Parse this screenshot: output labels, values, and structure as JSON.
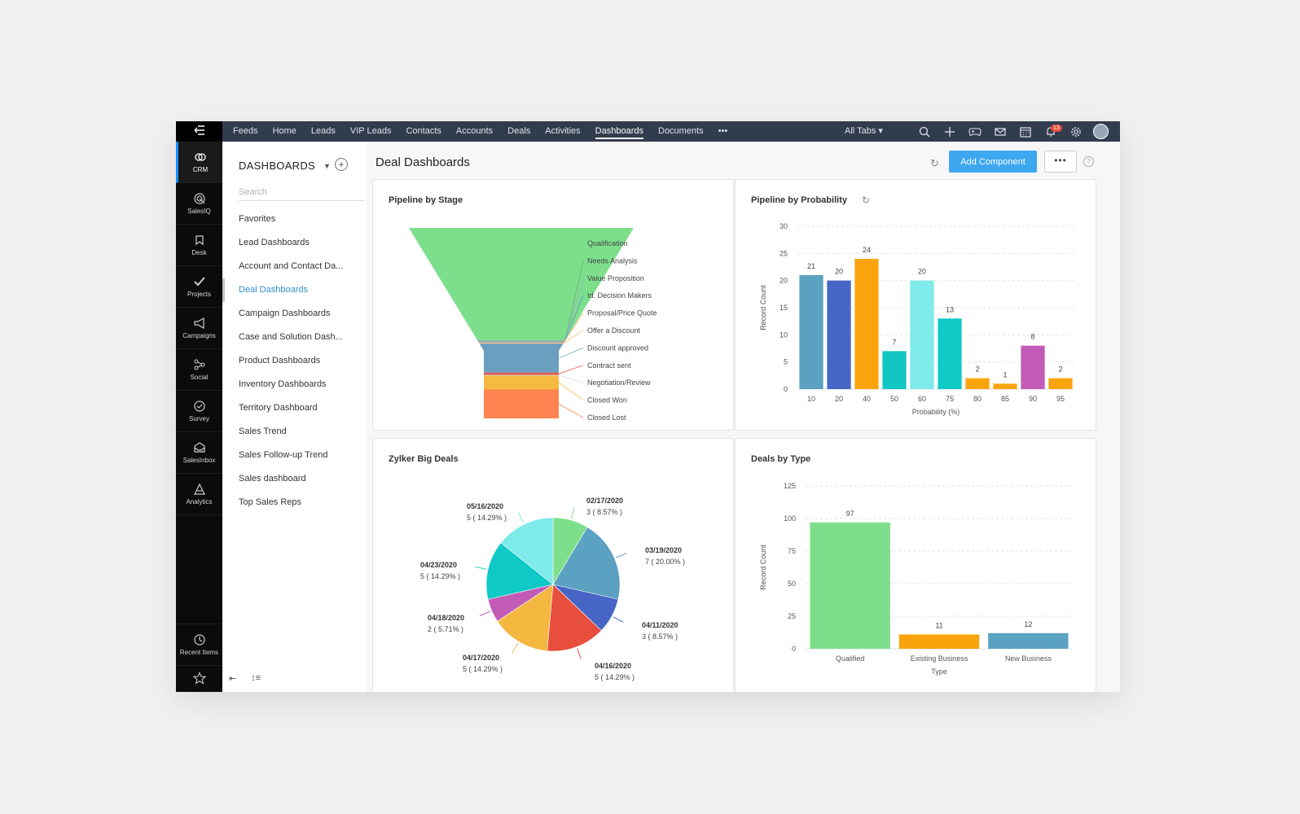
{
  "topnav": {
    "menu_icon": "hamburger-back-icon",
    "tabs": [
      {
        "label": "Feeds"
      },
      {
        "label": "Home"
      },
      {
        "label": "Leads"
      },
      {
        "label": "VIP Leads"
      },
      {
        "label": "Contacts"
      },
      {
        "label": "Accounts"
      },
      {
        "label": "Deals"
      },
      {
        "label": "Activities"
      },
      {
        "label": "Dashboards",
        "active": true
      },
      {
        "label": "Documents"
      },
      {
        "label": "•••"
      }
    ],
    "all_tabs": "All Tabs ▾",
    "notification_count": "13",
    "icons": [
      "search-icon",
      "plus-icon",
      "gamepad-icon",
      "mail-icon",
      "calendar-icon",
      "bell-icon",
      "gear-icon",
      "avatar"
    ]
  },
  "leftrail": {
    "items": [
      {
        "label": "CRM",
        "icon": "crm-icon",
        "active": true
      },
      {
        "label": "SalesIQ",
        "icon": "salesiq-icon"
      },
      {
        "label": "Desk",
        "icon": "desk-icon"
      },
      {
        "label": "Projects",
        "icon": "projects-icon"
      },
      {
        "label": "Campaigns",
        "icon": "campaigns-icon"
      },
      {
        "label": "Social",
        "icon": "social-icon"
      },
      {
        "label": "Survey",
        "icon": "survey-icon"
      },
      {
        "label": "SalesInbox",
        "icon": "salesinbox-icon"
      },
      {
        "label": "Analytics",
        "icon": "analytics-icon"
      }
    ],
    "bottom": [
      {
        "label": "Recent Items",
        "icon": "history-icon"
      },
      {
        "label": "",
        "icon": "star-icon"
      }
    ]
  },
  "dashnav": {
    "title": "DASHBOARDS",
    "search_placeholder": "Search",
    "items": [
      {
        "label": "Favorites"
      },
      {
        "label": "Lead Dashboards"
      },
      {
        "label": "Account and Contact Da..."
      },
      {
        "label": "Deal Dashboards",
        "active": true
      },
      {
        "label": "Campaign Dashboards"
      },
      {
        "label": "Case and Solution Dash..."
      },
      {
        "label": "Product Dashboards"
      },
      {
        "label": "Inventory Dashboards"
      },
      {
        "label": "Territory Dashboard"
      },
      {
        "label": "Sales Trend"
      },
      {
        "label": "Sales Follow-up Trend"
      },
      {
        "label": "Sales dashboard"
      },
      {
        "label": "Top Sales Reps"
      }
    ],
    "footer_icons": [
      "collapse-icon",
      "sort-icon"
    ]
  },
  "main": {
    "title": "Deal Dashboards",
    "add_component": "Add Component",
    "more": "•••",
    "help": "?"
  },
  "colors": {
    "accent": "#3da7f0",
    "topnav": "#313c4e",
    "rail": "#0b0b0b"
  },
  "chart_data": [
    {
      "type": "funnel",
      "title": "Pipeline by Stage",
      "stages": [
        {
          "label": "Qualification",
          "value": 97,
          "color": "#7ddf8c"
        },
        {
          "label": "Needs Analysis",
          "value": 0.6,
          "color": "#65b36f"
        },
        {
          "label": "Value Proposition",
          "value": 0.6,
          "color": "#9fb0c8"
        },
        {
          "label": "Id. Decision Makers",
          "value": 0.6,
          "color": "#6d8dd0"
        },
        {
          "label": "Proposal/Price Quote",
          "value": 0.6,
          "color": "#f2b66e"
        },
        {
          "label": "Offer a Discount",
          "value": 0.6,
          "color": "#f6c878"
        },
        {
          "label": "Discount approved",
          "value": 25,
          "color": "#6a9fbf"
        },
        {
          "label": "Contract sent",
          "value": 2,
          "color": "#e0554e"
        },
        {
          "label": "Negotiation/Review",
          "value": 0.6,
          "color": "#d9d9d9"
        },
        {
          "label": "Closed Won",
          "value": 12,
          "color": "#f5b942"
        },
        {
          "label": "Closed Lost",
          "value": 25,
          "color": "#ff8451"
        }
      ]
    },
    {
      "type": "bar",
      "title": "Pipeline by Probability",
      "categories": [
        "10",
        "20",
        "40",
        "50",
        "60",
        "75",
        "80",
        "85",
        "90",
        "95"
      ],
      "values": [
        21,
        20,
        24,
        7,
        20,
        13,
        2,
        1,
        8,
        2
      ],
      "colors": [
        "#5ba1c2",
        "#4665c5",
        "#f9a40c",
        "#11c6c3",
        "#7eeaea",
        "#0ec9c6",
        "#f9a40c",
        "#f9a40c",
        "#c25bb6",
        "#f9a40c"
      ],
      "xlabel": "Probability (%)",
      "ylabel": "Record Count",
      "ylim": [
        0,
        30
      ],
      "yticks": [
        0,
        5,
        10,
        15,
        20,
        25,
        30
      ]
    },
    {
      "type": "pie",
      "title": "Zylker Big Deals",
      "slices": [
        {
          "label": "02/17/2020",
          "value": 3,
          "pct": "3 ( 8.57% )",
          "color": "#7ddf8c"
        },
        {
          "label": "03/19/2020",
          "value": 7,
          "pct": "7 ( 20.00% )",
          "color": "#5ba1c2"
        },
        {
          "label": "04/11/2020",
          "value": 3,
          "pct": "3 ( 8.57% )",
          "color": "#4665c5"
        },
        {
          "label": "04/16/2020",
          "value": 5,
          "pct": "5 ( 14.29% )",
          "color": "#e84e3c"
        },
        {
          "label": "04/17/2020",
          "value": 5,
          "pct": "5 ( 14.29% )",
          "color": "#f4b740"
        },
        {
          "label": "04/18/2020",
          "value": 2,
          "pct": "2 ( 5.71% )",
          "color": "#c25bb6"
        },
        {
          "label": "04/23/2020",
          "value": 5,
          "pct": "5 ( 14.29% )",
          "color": "#0ec9c6"
        },
        {
          "label": "05/16/2020",
          "value": 5,
          "pct": "5 ( 14.29% )",
          "color": "#7eeaea"
        }
      ]
    },
    {
      "type": "bar",
      "title": "Deals by Type",
      "categories": [
        "Qualified",
        "Existing Business",
        "New Business"
      ],
      "values": [
        97,
        11,
        12
      ],
      "colors": [
        "#7ddf8c",
        "#f9a40c",
        "#5ba1c2"
      ],
      "xlabel": "Type",
      "ylabel": "Record Count",
      "ylim": [
        0,
        125
      ],
      "yticks": [
        0,
        25,
        50,
        75,
        100,
        125
      ]
    }
  ]
}
